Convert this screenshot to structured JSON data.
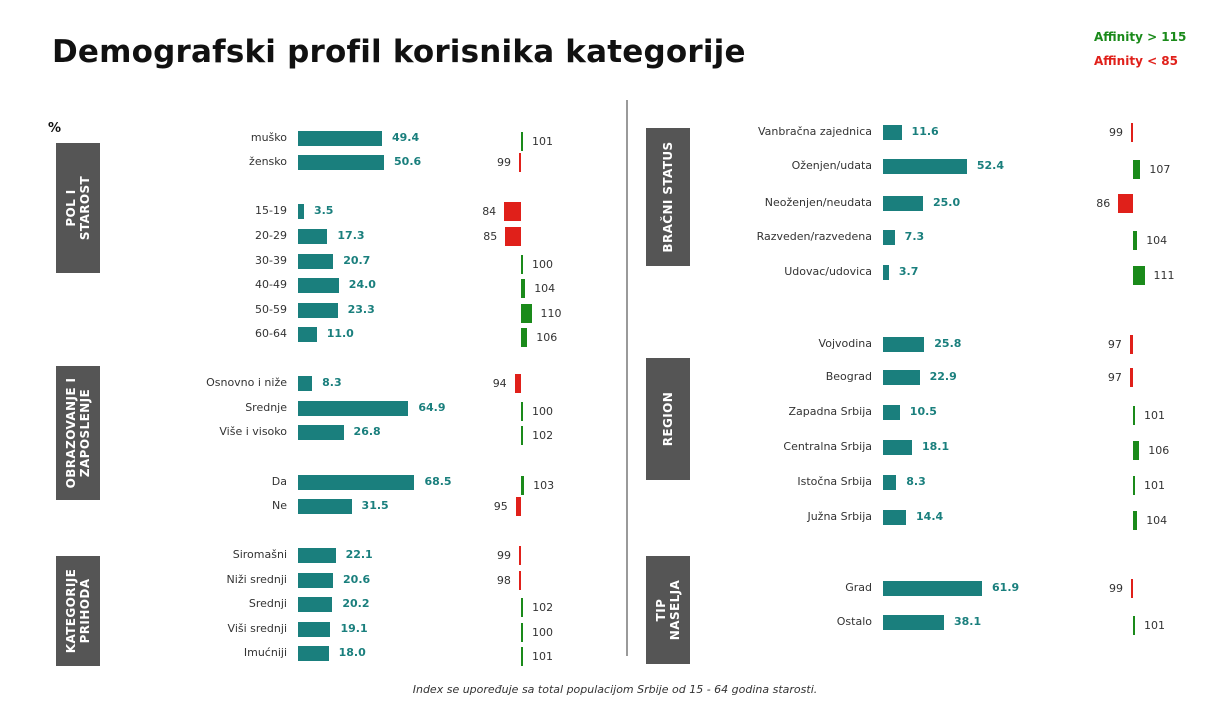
{
  "title": "Demografski profil korisnika kategorije",
  "unit_label": "%",
  "legend": {
    "high": "Affinity > 115",
    "low": "Affinity < 85"
  },
  "footnote": "Index se upoređuje sa total populacijom Srbije od 15 - 64 godina starosti.",
  "colors": {
    "bar": "#1a7f7d",
    "affinity_high": "#1a8a1a",
    "affinity_low": "#e0201a",
    "section_box": "#555555"
  },
  "chart_data": [
    {
      "type": "bar",
      "orientation": "horizontal",
      "section": "POL I\nSTAROST",
      "categories": [
        "muško",
        "žensko",
        "15-19",
        "20-29",
        "30-39",
        "40-49",
        "50-59",
        "60-64"
      ],
      "values": [
        49.4,
        50.6,
        3.5,
        17.3,
        20.7,
        24.0,
        23.3,
        11.0
      ],
      "index": [
        101,
        99,
        84,
        85,
        100,
        104,
        110,
        106
      ],
      "value_labels": [
        "49.4",
        "50.6",
        "3.5",
        "17.3",
        "20.7",
        "24.0",
        "23.3",
        "11.0"
      ]
    },
    {
      "type": "bar",
      "orientation": "horizontal",
      "section": "OBRAZOVANJE I\nZAPOSLENJE",
      "categories": [
        "Osnovno i niže",
        "Srednje",
        "Više i visoko",
        "Da",
        "Ne"
      ],
      "values": [
        8.3,
        64.9,
        26.8,
        68.5,
        31.5
      ],
      "index": [
        94,
        100,
        102,
        103,
        95
      ],
      "value_labels": [
        "8.3",
        "64.9",
        "26.8",
        "68.5",
        "31.5"
      ]
    },
    {
      "type": "bar",
      "orientation": "horizontal",
      "section": "KATEGORIJE\nPRIHODA",
      "categories": [
        "Siromašni",
        "Niži srednji",
        "Srednji",
        "Viši srednji",
        "Imućniji"
      ],
      "values": [
        22.1,
        20.6,
        20.2,
        19.1,
        18.0
      ],
      "index": [
        99,
        98,
        102,
        100,
        101
      ],
      "value_labels": [
        "22.1",
        "20.6",
        "20.2",
        "19.1",
        "18.0"
      ]
    },
    {
      "type": "bar",
      "orientation": "horizontal",
      "section": "BRAČNI STATUS",
      "categories": [
        "Vanbračna zajednica",
        "Oženjen/udata",
        "Neoženjen/neudata",
        "Razveden/razvedena",
        "Udovac/udovica"
      ],
      "values": [
        11.6,
        52.4,
        25.0,
        7.3,
        3.7
      ],
      "index": [
        99,
        107,
        86,
        104,
        111
      ],
      "value_labels": [
        "11.6",
        "52.4",
        "25.0",
        "7.3",
        "3.7"
      ]
    },
    {
      "type": "bar",
      "orientation": "horizontal",
      "section": "REGION",
      "categories": [
        "Vojvodina",
        "Beograd",
        "Zapadna Srbija",
        "Centralna Srbija",
        "Istočna Srbija",
        "Južna Srbija"
      ],
      "values": [
        25.8,
        22.9,
        10.5,
        18.1,
        8.3,
        14.4
      ],
      "index": [
        97,
        97,
        101,
        106,
        101,
        104
      ],
      "value_labels": [
        "25.8",
        "22.9",
        "10.5",
        "18.1",
        "8.3",
        "14.4"
      ]
    },
    {
      "type": "bar",
      "orientation": "horizontal",
      "section": "TIP\nNASELJA",
      "categories": [
        "Grad",
        "Ostalo"
      ],
      "values": [
        61.9,
        38.1
      ],
      "index": [
        99,
        101
      ],
      "value_labels": [
        "61.9",
        "38.1"
      ]
    }
  ]
}
